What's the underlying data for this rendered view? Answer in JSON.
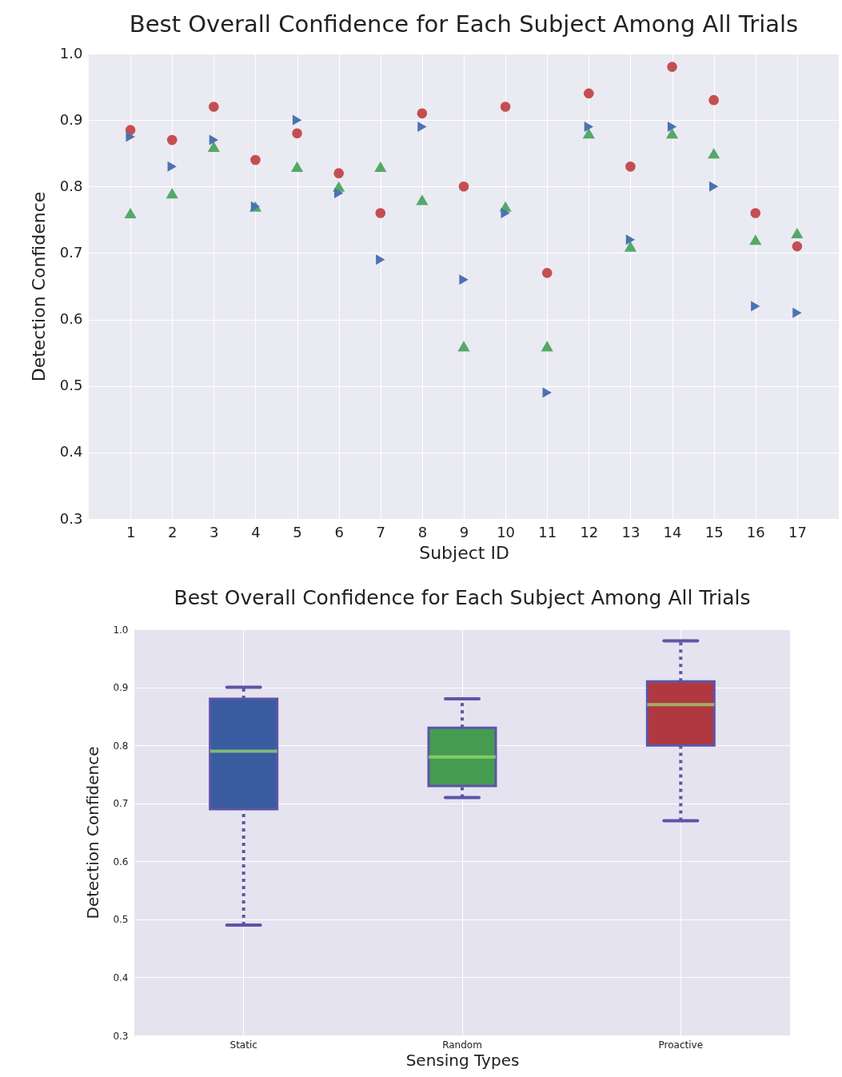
{
  "chart_data": [
    {
      "type": "scatter",
      "title": "Best Overall Confidence for Each Subject Among All Trials",
      "xlabel": "Subject ID",
      "ylabel": "Detection Confidence",
      "x": [
        1,
        2,
        3,
        4,
        5,
        6,
        7,
        8,
        9,
        10,
        11,
        12,
        13,
        14,
        15,
        16,
        17
      ],
      "series": [
        {
          "color": "#c44e52",
          "marker": "circle",
          "values": [
            0.885,
            0.87,
            0.92,
            0.84,
            0.88,
            0.82,
            0.76,
            0.91,
            0.8,
            0.92,
            0.67,
            0.94,
            0.83,
            0.98,
            0.93,
            0.76,
            0.71
          ]
        },
        {
          "color": "#55a868",
          "marker": "triangle",
          "values": [
            0.76,
            0.79,
            0.86,
            0.77,
            0.83,
            0.8,
            0.83,
            0.78,
            0.56,
            0.77,
            0.56,
            0.88,
            0.71,
            0.88,
            0.85,
            0.72,
            0.73
          ]
        },
        {
          "color": "#4c72b0",
          "marker": "triangle-right",
          "values": [
            0.875,
            0.83,
            0.87,
            0.77,
            0.9,
            0.79,
            0.69,
            0.89,
            0.66,
            0.76,
            0.49,
            0.89,
            0.72,
            0.89,
            0.8,
            0.62,
            0.61
          ]
        }
      ],
      "xlim": [
        0,
        18
      ],
      "xticks": [
        1,
        2,
        3,
        4,
        5,
        6,
        7,
        8,
        9,
        10,
        11,
        12,
        13,
        14,
        15,
        16,
        17
      ],
      "ylim": [
        0.3,
        1.0
      ],
      "yticks": [
        0.3,
        0.4,
        0.5,
        0.6,
        0.7,
        0.8,
        0.9,
        {
          "value": 1.0,
          "label": "1.0"
        }
      ],
      "grid": true
    },
    {
      "type": "box",
      "title": "Best Overall Confidence for Each Subject Among All Trials",
      "xlabel": "Sensing Types",
      "ylabel": "Detection Confidence",
      "categories": [
        "Static",
        "Random",
        "Proactive"
      ],
      "colors": [
        "#3a5ba0",
        "#459c50",
        "#b03840"
      ],
      "boxes": [
        {
          "low": 0.49,
          "q1": 0.69,
          "median": 0.79,
          "q3": 0.88,
          "high": 0.9
        },
        {
          "low": 0.71,
          "q1": 0.73,
          "median": 0.78,
          "q3": 0.83,
          "high": 0.88
        },
        {
          "low": 0.67,
          "q1": 0.8,
          "median": 0.87,
          "q3": 0.91,
          "high": 0.98
        }
      ],
      "ylim": [
        0.3,
        1.0
      ],
      "yticks": [
        0.3,
        0.4,
        0.5,
        0.6,
        0.7,
        0.8,
        0.9,
        {
          "value": 1.0,
          "label": "1.0"
        }
      ],
      "line_style": "dotted",
      "grid": true
    }
  ]
}
